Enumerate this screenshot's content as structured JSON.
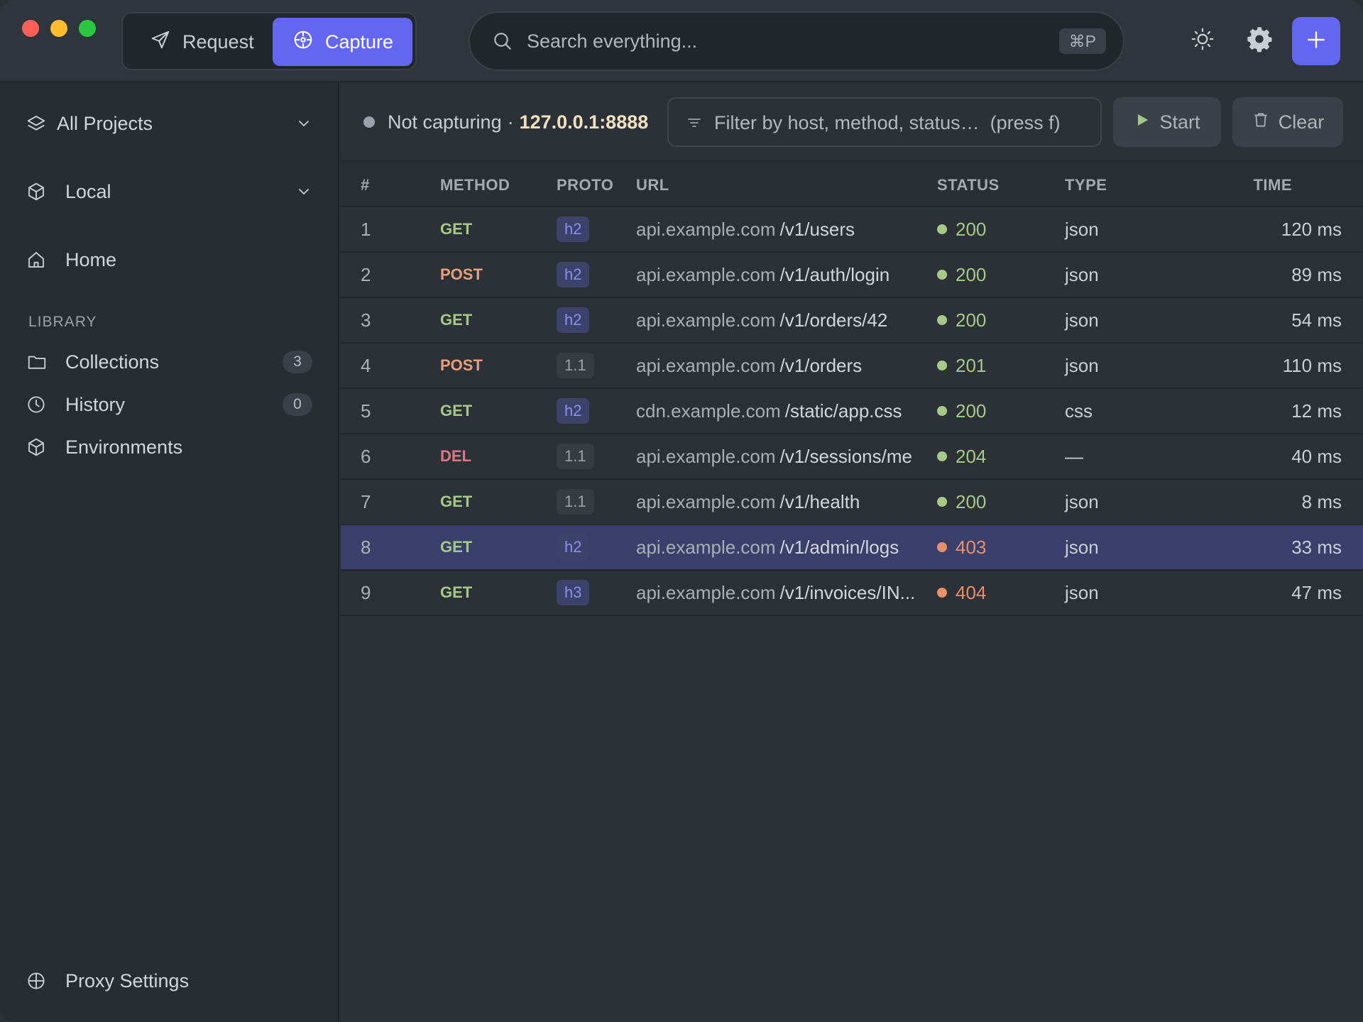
{
  "titlebar": {
    "modes": [
      {
        "label": "Request",
        "icon": "paper-plane-icon",
        "active": false
      },
      {
        "label": "Capture",
        "icon": "crosshair-icon",
        "active": true
      }
    ],
    "search": {
      "placeholder": "Search everything...",
      "shortcut": "⌘P"
    },
    "icons": {
      "theme": "sun-icon",
      "settings": "gear-icon",
      "add": "plus-icon"
    },
    "accent_color": "#6366f1"
  },
  "sidebar": {
    "project": {
      "label": "All Projects",
      "icon": "layers-icon"
    },
    "environment": {
      "label": "Local",
      "icon": "cube-icon"
    },
    "home": {
      "label": "Home",
      "icon": "home-icon"
    },
    "library_label": "LIBRARY",
    "library": [
      {
        "label": "Collections",
        "icon": "folder-icon",
        "count": "3"
      },
      {
        "label": "History",
        "icon": "clock-icon",
        "count": "0"
      },
      {
        "label": "Environments",
        "icon": "cube-icon"
      }
    ],
    "proxy": {
      "label": "Proxy Settings",
      "icon": "globe-icon"
    }
  },
  "toolbar": {
    "status_text": "Not capturing",
    "separator": "·",
    "address": "127.0.0.1:8888",
    "filter_placeholder": "Filter by host, method, status…  (press f)",
    "start_label": "Start",
    "clear_label": "Clear"
  },
  "table": {
    "columns": [
      "#",
      "METHOD",
      "PROTO",
      "URL",
      "STATUS",
      "TYPE",
      "TIME"
    ],
    "rows": [
      {
        "num": "1",
        "method": "GET",
        "proto": "h2",
        "host": "api.example.com",
        "path": "/v1/users",
        "status": "200",
        "type": "json",
        "time": "120 ms"
      },
      {
        "num": "2",
        "method": "POST",
        "proto": "h2",
        "host": "api.example.com",
        "path": "/v1/auth/login",
        "status": "200",
        "type": "json",
        "time": "89 ms"
      },
      {
        "num": "3",
        "method": "GET",
        "proto": "h2",
        "host": "api.example.com",
        "path": "/v1/orders/42",
        "status": "200",
        "type": "json",
        "time": "54 ms"
      },
      {
        "num": "4",
        "method": "POST",
        "proto": "1.1",
        "host": "api.example.com",
        "path": "/v1/orders",
        "status": "201",
        "type": "json",
        "time": "110 ms"
      },
      {
        "num": "5",
        "method": "GET",
        "proto": "h2",
        "host": "cdn.example.com",
        "path": "/static/app.css",
        "status": "200",
        "type": "css",
        "time": "12 ms"
      },
      {
        "num": "6",
        "method": "DEL",
        "proto": "1.1",
        "host": "api.example.com",
        "path": "/v1/sessions/me",
        "status": "204",
        "type": "—",
        "time": "40 ms"
      },
      {
        "num": "7",
        "method": "GET",
        "proto": "1.1",
        "host": "api.example.com",
        "path": "/v1/health",
        "status": "200",
        "type": "json",
        "time": "8 ms"
      },
      {
        "num": "8",
        "method": "GET",
        "proto": "h2",
        "host": "api.example.com",
        "path": "/v1/admin/logs",
        "status": "403",
        "type": "json",
        "time": "33 ms",
        "selected": true
      },
      {
        "num": "9",
        "method": "GET",
        "proto": "h3",
        "host": "api.example.com",
        "path": "/v1/invoices/IN...",
        "status": "404",
        "type": "json",
        "time": "47 ms"
      }
    ]
  }
}
